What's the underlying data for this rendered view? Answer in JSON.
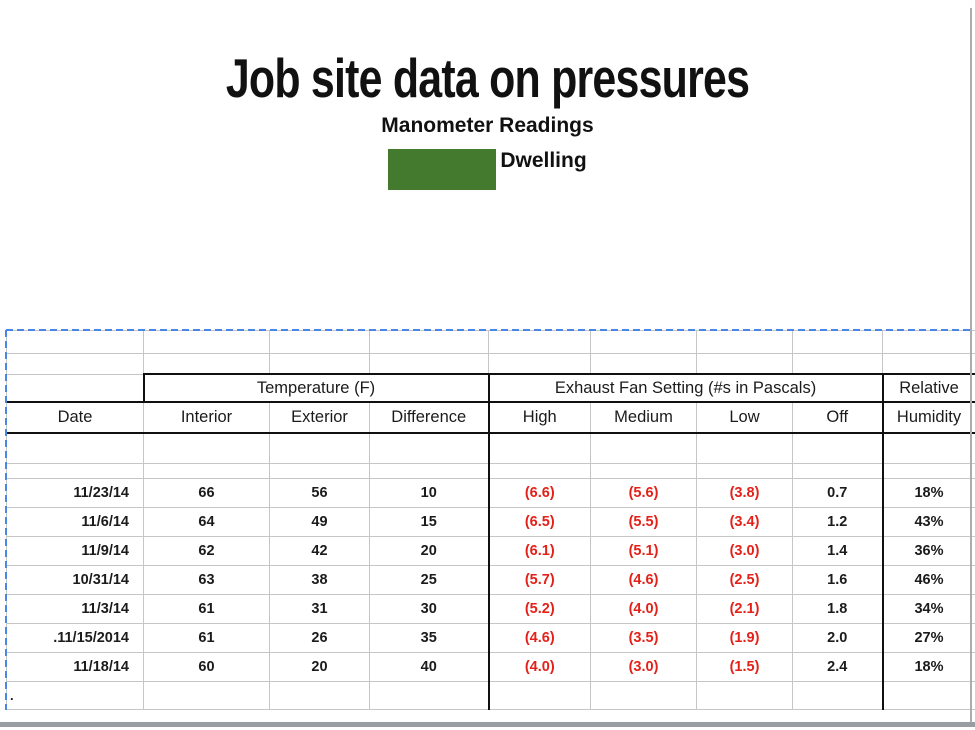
{
  "slide": {
    "title": "Job site data on pressures",
    "subtitle": "Manometer Readings",
    "legend": {
      "label": "Dwelling",
      "swatch_color": "#437a2e"
    }
  },
  "table": {
    "group_headers": [
      {
        "label": "",
        "span": 1
      },
      {
        "label": "Temperature (F)",
        "span": 3
      },
      {
        "label": "Exhaust Fan Setting (#s in Pascals)",
        "span": 4
      },
      {
        "label": "Relative",
        "span": 1
      }
    ],
    "column_headers": [
      "Date",
      "Interior",
      "Exterior",
      "Difference",
      "High",
      "Medium",
      "Low",
      "Off",
      "Humidity"
    ],
    "rows": [
      {
        "date": "11/23/14",
        "interior": "66",
        "exterior": "56",
        "difference": "10",
        "high": "(6.6)",
        "medium": "(5.6)",
        "low": "(3.8)",
        "off": "0.7",
        "humidity": "18%"
      },
      {
        "date": "11/6/14",
        "interior": "64",
        "exterior": "49",
        "difference": "15",
        "high": "(6.5)",
        "medium": "(5.5)",
        "low": "(3.4)",
        "off": "1.2",
        "humidity": "43%"
      },
      {
        "date": "11/9/14",
        "interior": "62",
        "exterior": "42",
        "difference": "20",
        "high": "(6.1)",
        "medium": "(5.1)",
        "low": "(3.0)",
        "off": "1.4",
        "humidity": "36%"
      },
      {
        "date": "10/31/14",
        "interior": "63",
        "exterior": "38",
        "difference": "25",
        "high": "(5.7)",
        "medium": "(4.6)",
        "low": "(2.5)",
        "off": "1.6",
        "humidity": "46%"
      },
      {
        "date": "11/3/14",
        "interior": "61",
        "exterior": "31",
        "difference": "30",
        "high": "(5.2)",
        "medium": "(4.0)",
        "low": "(2.1)",
        "off": "1.8",
        "humidity": "34%"
      },
      {
        "date": ".11/15/2014",
        "interior": "61",
        "exterior": "26",
        "difference": "35",
        "high": "(4.6)",
        "medium": "(3.5)",
        "low": "(1.9)",
        "off": "2.0",
        "humidity": "27%"
      },
      {
        "date": "11/18/14",
        "interior": "60",
        "exterior": "20",
        "difference": "40",
        "high": "(4.0)",
        "medium": "(3.0)",
        "low": "(1.5)",
        "off": "2.4",
        "humidity": "18%"
      }
    ],
    "trailing_cell": ".",
    "colors": {
      "negative_value": "#e32119",
      "gridline": "#c6c6c6",
      "dark_border": "#101010",
      "selection_border": "#4a86e8"
    }
  }
}
